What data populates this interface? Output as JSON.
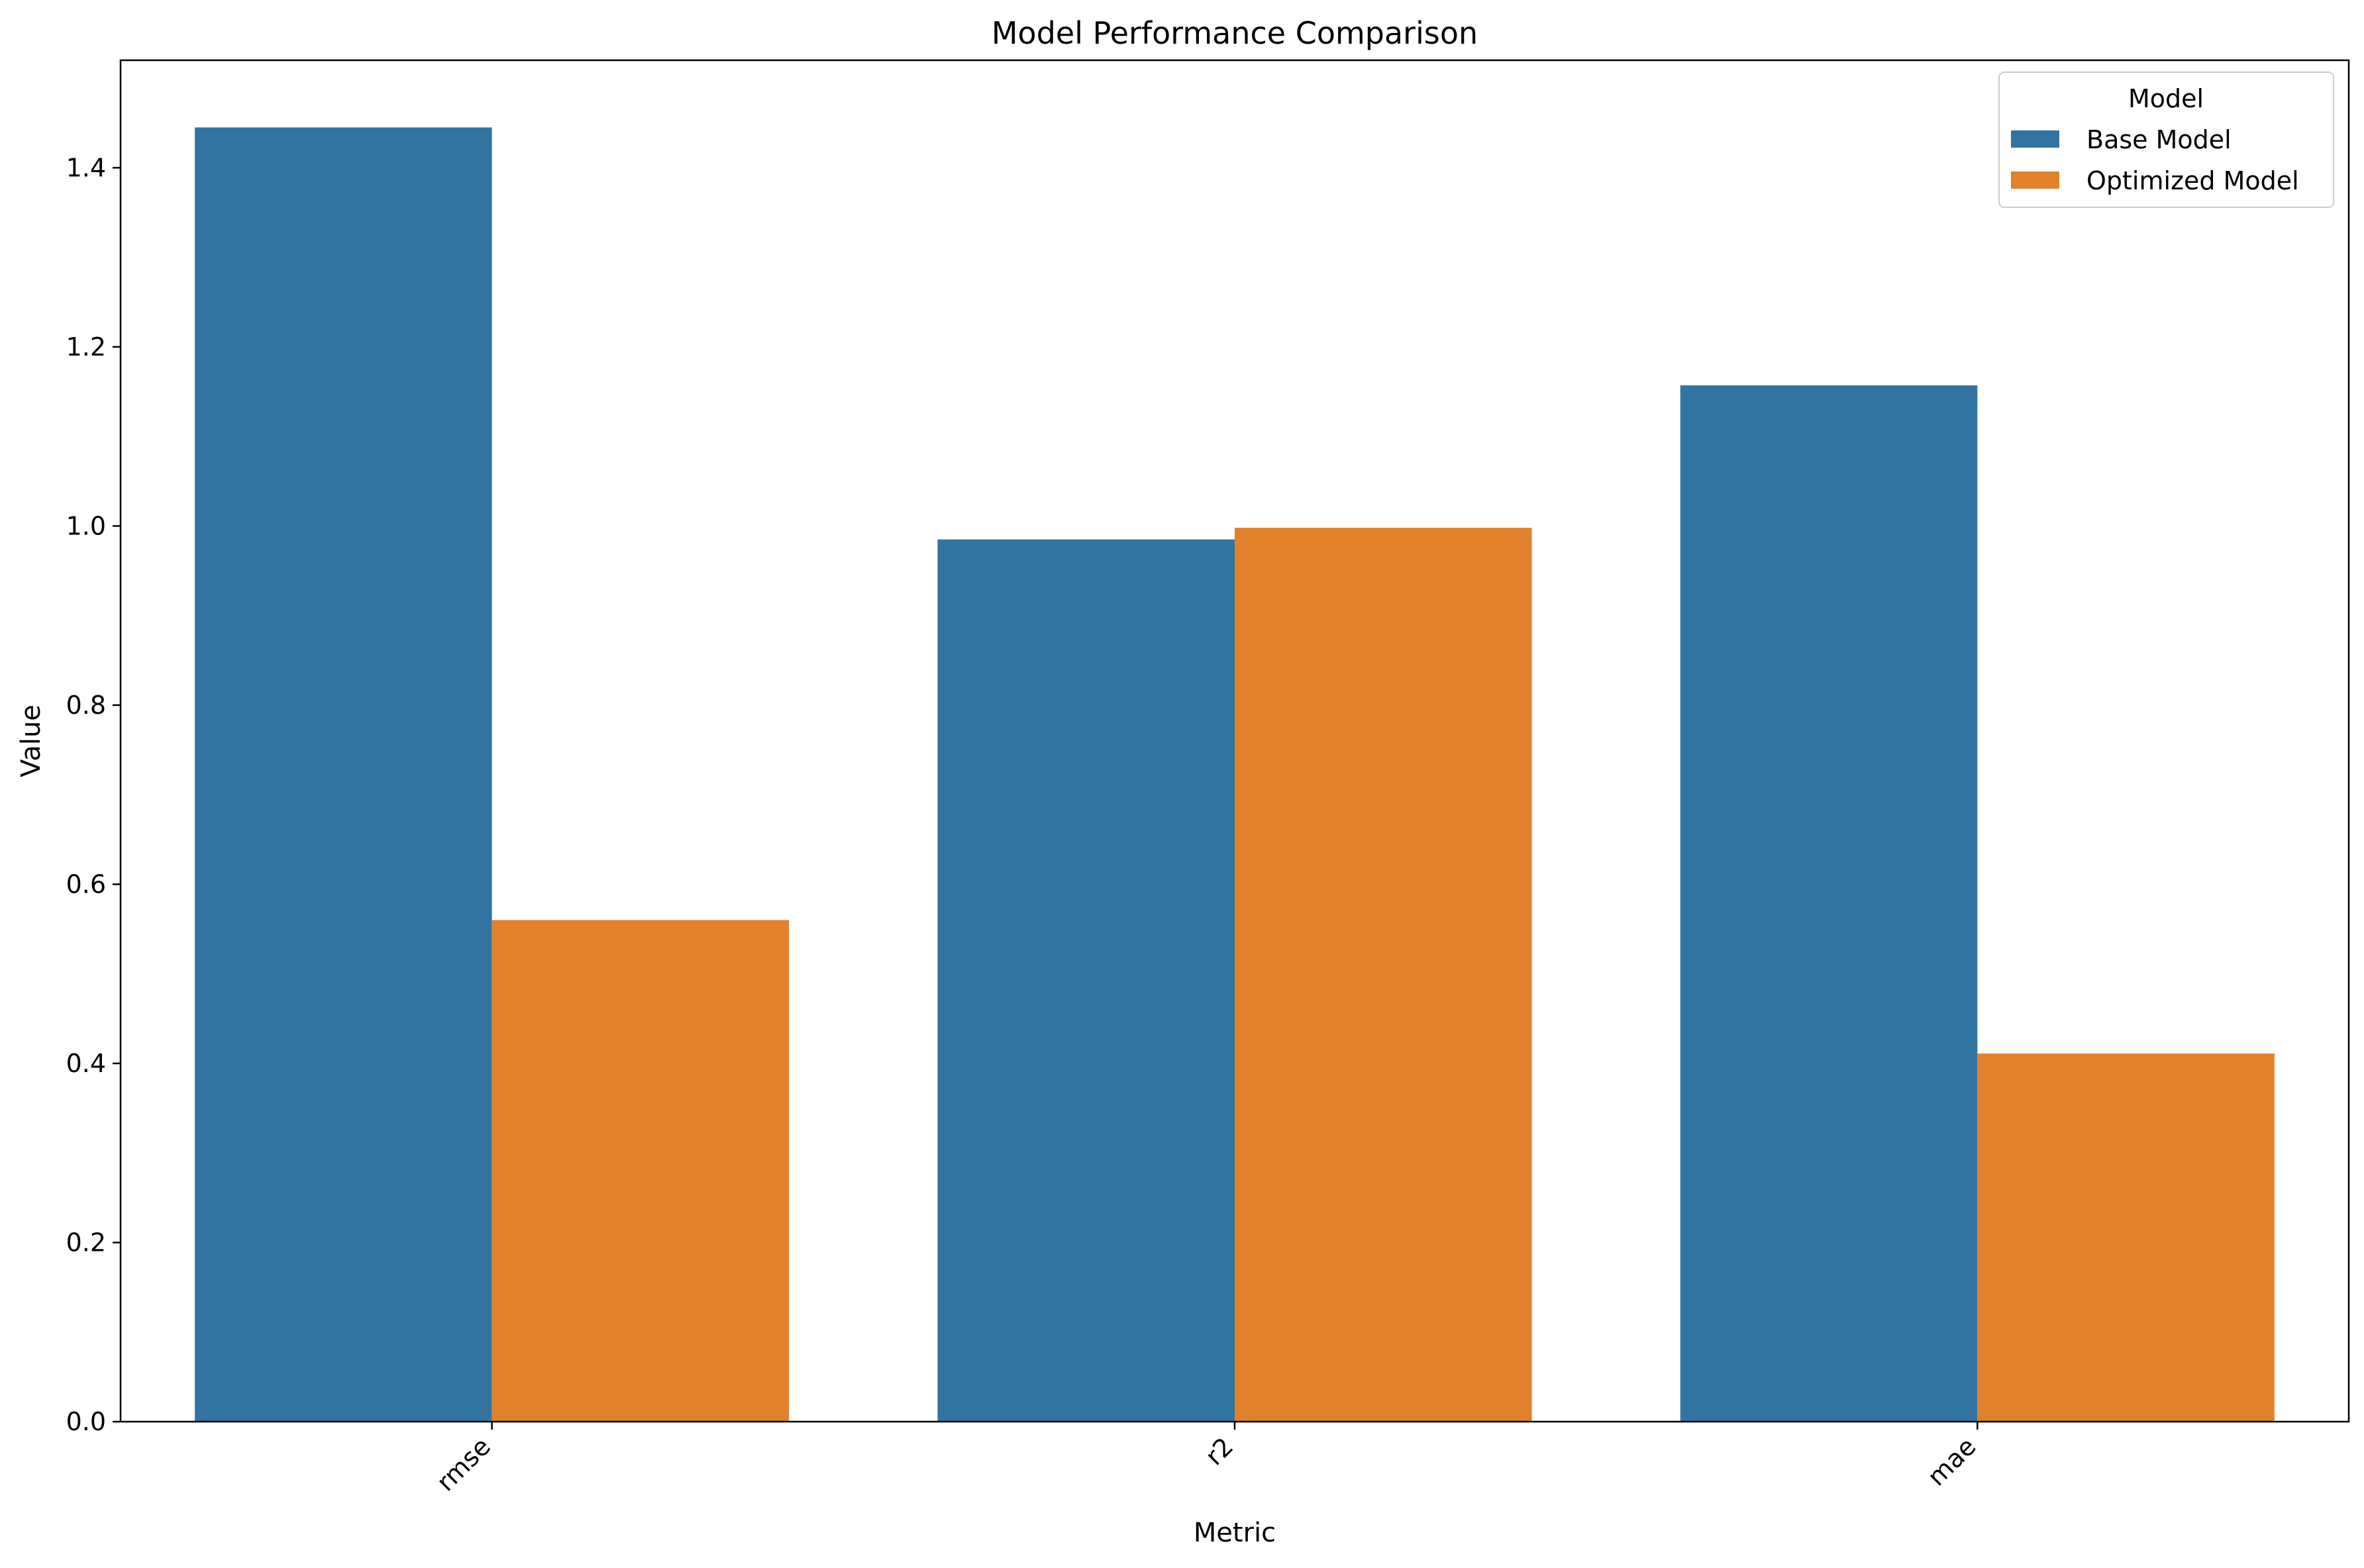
{
  "chart_data": {
    "type": "bar",
    "title": "Model Performance Comparison",
    "xlabel": "Metric",
    "ylabel": "Value",
    "categories": [
      "rmse",
      "r2",
      "mae"
    ],
    "series": [
      {
        "name": "Base Model",
        "values": [
          1.445,
          0.985,
          1.157
        ],
        "color": "#3274a1"
      },
      {
        "name": "Optimized Model",
        "values": [
          0.56,
          0.998,
          0.411
        ],
        "color": "#e1812c"
      }
    ],
    "ylim": [
      0,
      1.52
    ],
    "yticks": [
      "0.0",
      "0.2",
      "0.4",
      "0.6",
      "0.8",
      "1.0",
      "1.2",
      "1.4"
    ],
    "legend": {
      "title": "Model",
      "position": "top-right"
    },
    "grid": false
  }
}
